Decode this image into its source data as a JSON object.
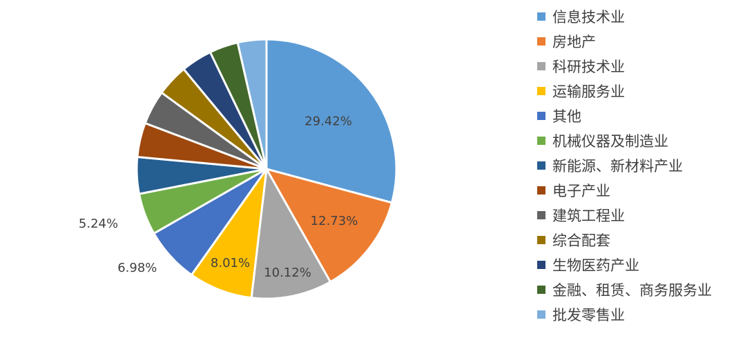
{
  "chart_data": {
    "type": "pie",
    "start_angle_deg": 0,
    "direction": "clockwise",
    "legend_position": "right",
    "slices": [
      {
        "label": "信息技术业",
        "value": 29.42,
        "data_label": "29.42%",
        "color": "#5b9bd5"
      },
      {
        "label": "房地产",
        "value": 12.73,
        "data_label": "12.73%",
        "color": "#ed7d31"
      },
      {
        "label": "科研技术业",
        "value": 10.12,
        "data_label": "10.12%",
        "color": "#a5a5a5"
      },
      {
        "label": "运输服务业",
        "value": 8.01,
        "data_label": "8.01%",
        "color": "#ffc000"
      },
      {
        "label": "其他",
        "value": 6.98,
        "data_label": "6.98%",
        "color": "#4472c4"
      },
      {
        "label": "机械仪器及制造业",
        "value": 5.24,
        "data_label": "5.24%",
        "color": "#70ad47"
      },
      {
        "label": "新能源、新材料产业",
        "value": 4.6,
        "color": "#255e91"
      },
      {
        "label": "电子产业",
        "value": 4.3,
        "color": "#9e480e"
      },
      {
        "label": "建筑工程业",
        "value": 4.3,
        "color": "#636363"
      },
      {
        "label": "综合配套",
        "value": 4.0,
        "color": "#997300"
      },
      {
        "label": "生物医药产业",
        "value": 3.9,
        "color": "#264478"
      },
      {
        "label": "金融、租赁、商务服务业",
        "value": 3.6,
        "color": "#43682b"
      },
      {
        "label": "批发零售业",
        "value": 3.6,
        "color": "#7cafdd"
      }
    ]
  }
}
